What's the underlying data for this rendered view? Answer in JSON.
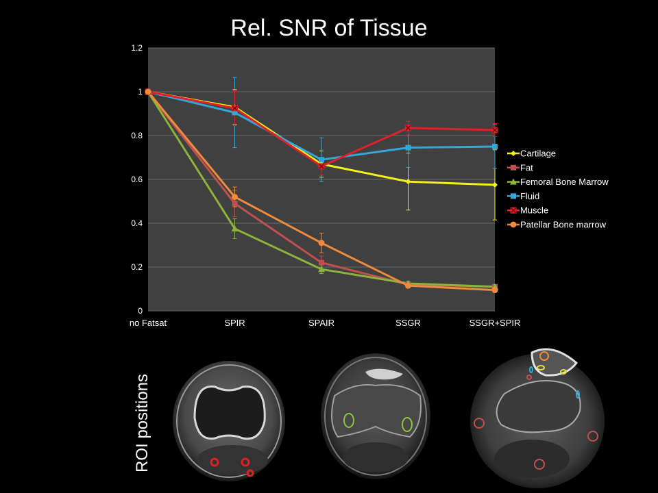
{
  "chart_data": {
    "type": "line",
    "title": "Rel. SNR of Tissue",
    "xlabel": "",
    "ylabel": "",
    "categories": [
      "no Fatsat",
      "SPIR",
      "SPAIR",
      "SSGR",
      "SSGR+SPIR"
    ],
    "ylim": [
      0,
      1.2
    ],
    "yticks": [
      "0",
      "0.2",
      "0.4",
      "0.6",
      "0.8",
      "1",
      "1.2"
    ],
    "grid": true,
    "legend_position": "right",
    "series": [
      {
        "name": "Cartilage",
        "values": [
          1,
          0.93,
          0.67,
          0.59,
          0.575
        ],
        "color": "#f2f21a",
        "marker": "diamond",
        "error": [
          0,
          0.08,
          0.06,
          0.13,
          0.16
        ]
      },
      {
        "name": "Fat",
        "values": [
          1,
          0.49,
          0.22,
          0.12,
          0.11
        ],
        "color": "#c0504d",
        "marker": "square",
        "error": [
          0,
          0.06,
          0.03,
          0.01,
          0.01
        ]
      },
      {
        "name": "Femoral Bone Marrow",
        "values": [
          1,
          0.375,
          0.19,
          0.125,
          0.11
        ],
        "color": "#8cb43c",
        "marker": "triangle",
        "error": [
          0,
          0.045,
          0.02,
          0.01,
          0.01
        ]
      },
      {
        "name": "Fluid",
        "values": [
          1,
          0.905,
          0.69,
          0.745,
          0.75
        ],
        "color": "#33a8d8",
        "marker": "square",
        "error": [
          0,
          0.16,
          0.1,
          0.09,
          0.1
        ]
      },
      {
        "name": "Muscle",
        "values": [
          1,
          0.925,
          0.66,
          0.835,
          0.825
        ],
        "color": "#e0212b",
        "marker": "x",
        "error": [
          0,
          0.08,
          0.04,
          0.03,
          0.03
        ]
      },
      {
        "name": "Patellar Bone marrow",
        "values": [
          1,
          0.52,
          0.31,
          0.115,
          0.095
        ],
        "color": "#f08a3c",
        "marker": "circle",
        "error": [
          0,
          0.045,
          0.045,
          0.01,
          0.01
        ]
      }
    ]
  },
  "roi_label": "ROI positions",
  "images": [
    {
      "name": "mri-knee-slice-1",
      "roi_color": "#e02020",
      "roi_count": 3
    },
    {
      "name": "mri-knee-slice-2",
      "roi_color": "#8cc83c",
      "roi_count": 2
    },
    {
      "name": "mri-knee-slice-3",
      "roi_colors": [
        "#f08a3c",
        "#e8e040",
        "#33a8d8",
        "#c0504d"
      ]
    }
  ],
  "colors": {
    "background": "#000000",
    "plot_area": "#404040",
    "gridline": "#6a6a6a",
    "axis_text": "#ffffff"
  }
}
